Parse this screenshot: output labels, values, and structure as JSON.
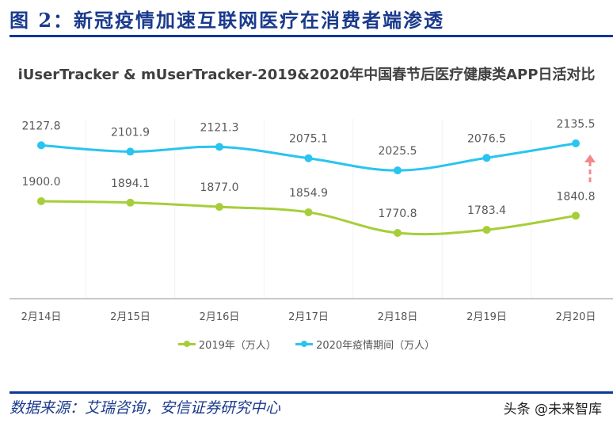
{
  "figure": {
    "title": "图 2：新冠疫情加速互联网医疗在消费者端渗透"
  },
  "chart_data": {
    "type": "line",
    "title": "iUserTracker & mUserTracker-2019&2020年中国春节后医疗健康类APP日活对比",
    "categories": [
      "2月14日",
      "2月15日",
      "2月16日",
      "2月17日",
      "2月18日",
      "2月19日",
      "2月20日"
    ],
    "series": [
      {
        "name": "2019年（万人）",
        "color": "#a6ce39",
        "values": [
          1900.0,
          1894.1,
          1877.0,
          1854.9,
          1770.8,
          1783.4,
          1840.8
        ],
        "labels": [
          "1900.0",
          "1894.1",
          "1877.0",
          "1854.9",
          "1770.8",
          "1783.4",
          "1840.8"
        ]
      },
      {
        "name": "2020年疫情期间（万人）",
        "color": "#29c4f0",
        "values": [
          2127.8,
          2101.9,
          2121.3,
          2075.1,
          2025.5,
          2076.5,
          2135.5
        ],
        "labels": [
          "2127.8",
          "2101.9",
          "2121.3",
          "2075.1",
          "2025.5",
          "2076.5",
          "2135.5"
        ]
      }
    ],
    "xlabel": "",
    "ylabel": "",
    "grid": "vertical-faint",
    "legend_position": "bottom",
    "annotations": [
      {
        "type": "dashed-up-arrow",
        "color": "#f08080",
        "at": "2月20日"
      }
    ]
  },
  "legend": {
    "items": [
      {
        "label": "2019年（万人）",
        "color": "#a6ce39"
      },
      {
        "label": "2020年疫情期间（万人）",
        "color": "#29c4f0"
      }
    ]
  },
  "footer": {
    "source": "数据来源：艾瑞咨询，安信证券研究中心",
    "watermark": "头条 @未来智库"
  }
}
